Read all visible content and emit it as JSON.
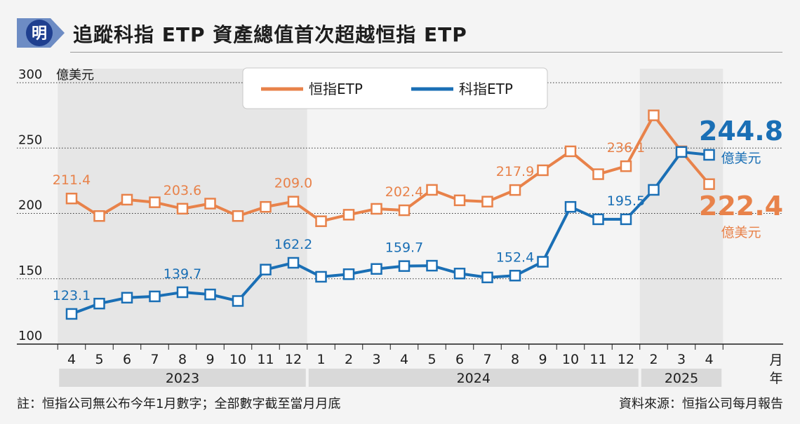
{
  "title": "追蹤科指 ETP 資產總值首次超越恒指 ETP",
  "logo_text": "明",
  "note": "註：恒指公司無公布今年1月數字；全部數字截至當月月底",
  "source": "資料來源：恒指公司每月報告",
  "colors": {
    "hsi": "#e8824a",
    "hstech": "#1a6fb5",
    "shade": "#e6e6e6",
    "grid": "#333333"
  },
  "chart_data": {
    "type": "line",
    "title": "追蹤科指 ETP 資產總值首次超越恒指 ETP",
    "ylabel": "億美元",
    "xlabel": "月",
    "year_axis_label": "年",
    "ylim": [
      100,
      300
    ],
    "yticks": [
      100,
      150,
      200,
      250,
      300
    ],
    "categories": [
      "4",
      "5",
      "6",
      "7",
      "8",
      "9",
      "10",
      "11",
      "12",
      "1",
      "2",
      "3",
      "4",
      "5",
      "6",
      "7",
      "8",
      "9",
      "10",
      "11",
      "12",
      "2",
      "3",
      "4"
    ],
    "years": [
      {
        "label": "2023",
        "count": 9
      },
      {
        "label": "2024",
        "count": 12
      },
      {
        "label": "2025",
        "count": 3
      }
    ],
    "legend": {
      "position": "top-center",
      "entries": [
        "恒指ETP",
        "科指ETP"
      ]
    },
    "series": [
      {
        "name": "恒指ETP",
        "color": "#e8824a",
        "values": [
          211.4,
          198,
          210.5,
          208.5,
          203.6,
          207.5,
          198,
          205,
          209.0,
          194,
          199,
          203.5,
          202.4,
          218,
          210,
          209,
          217.9,
          233,
          247.5,
          230,
          236.1,
          275,
          247.5,
          222.4
        ],
        "labels": [
          {
            "index": 0,
            "text": "211.4"
          },
          {
            "index": 4,
            "text": "203.6"
          },
          {
            "index": 8,
            "text": "209.0"
          },
          {
            "index": 12,
            "text": "202.4"
          },
          {
            "index": 16,
            "text": "217.9"
          },
          {
            "index": 20,
            "text": "236.1"
          }
        ],
        "end_label": "222.4",
        "end_unit": "億美元"
      },
      {
        "name": "科指ETP",
        "color": "#1a6fb5",
        "values": [
          123.1,
          131,
          135.5,
          136.5,
          139.7,
          138,
          133,
          157,
          162.2,
          151.5,
          153.5,
          157.5,
          159.7,
          160,
          154,
          151,
          152.4,
          163,
          205,
          195.5,
          195.5,
          218,
          247,
          244.8
        ],
        "labels": [
          {
            "index": 0,
            "text": "123.1"
          },
          {
            "index": 4,
            "text": "139.7"
          },
          {
            "index": 8,
            "text": "162.2"
          },
          {
            "index": 12,
            "text": "159.7"
          },
          {
            "index": 16,
            "text": "152.4"
          },
          {
            "index": 20,
            "text": "195.5"
          }
        ],
        "end_label": "244.8",
        "end_unit": "億美元"
      }
    ]
  }
}
